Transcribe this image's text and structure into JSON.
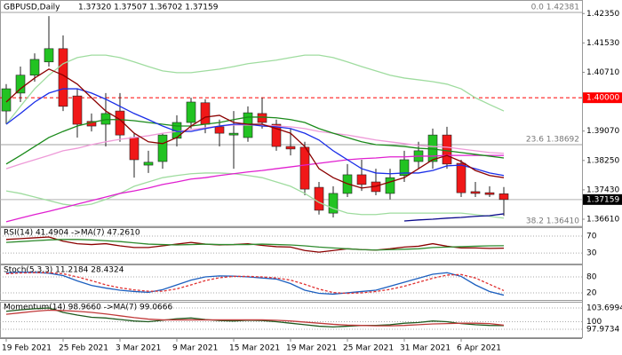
{
  "chart_data": [
    {
      "type": "candlestick",
      "title": "GBPUSD,Daily",
      "ohlc_label": "1.37320 1.37507 1.36702 1.37159",
      "categories": [
        "19 Feb 2021",
        null,
        null,
        null,
        "25 Feb 2021",
        null,
        null,
        null,
        "3 Mar 2021",
        null,
        null,
        null,
        "9 Mar 2021",
        null,
        null,
        null,
        "15 Mar 2021",
        null,
        null,
        null,
        "19 Mar 2021",
        null,
        null,
        null,
        "25 Mar 2021",
        null,
        null,
        null,
        "31 Mar 2021",
        null,
        null,
        null,
        "6 Apr 2021",
        null,
        null,
        null
      ],
      "open": [
        1.3963,
        1.4013,
        1.4063,
        1.41,
        1.4137,
        1.4005,
        1.3934,
        1.3926,
        1.3963,
        1.3889,
        1.3812,
        1.3822,
        1.3887,
        1.3931,
        1.3986,
        1.3919,
        1.3896,
        1.3889,
        1.3956,
        1.3926,
        1.3864,
        1.3862,
        1.375,
        1.3678,
        1.3733,
        1.3785,
        1.3765,
        1.3733,
        1.3783,
        1.3822,
        1.3822,
        1.3896,
        1.3817,
        1.3738,
        1.3735,
        1.3732
      ],
      "high": [
        1.4038,
        1.4087,
        1.4124,
        1.4228,
        1.4174,
        1.4025,
        1.3956,
        1.4013,
        1.4013,
        1.3901,
        1.3852,
        1.3901,
        1.3951,
        1.4,
        1.3996,
        1.3939,
        1.3963,
        1.3976,
        1.4,
        1.3939,
        1.3914,
        1.3877,
        1.3765,
        1.3753,
        1.3815,
        1.3827,
        1.3802,
        1.3802,
        1.3852,
        1.3877,
        1.3914,
        1.3919,
        1.3827,
        1.3765,
        1.3753,
        1.37507
      ],
      "low": [
        1.3926,
        1.3988,
        1.4045,
        1.4087,
        1.3963,
        1.3889,
        1.3906,
        1.3864,
        1.3877,
        1.3777,
        1.379,
        1.3802,
        1.3864,
        1.3914,
        1.3901,
        1.3864,
        1.3802,
        1.3877,
        1.3914,
        1.3852,
        1.3839,
        1.3728,
        1.3674,
        1.3666,
        1.3723,
        1.374,
        1.3728,
        1.3716,
        1.3765,
        1.3802,
        1.3802,
        1.3802,
        1.3723,
        1.3723,
        1.3723,
        1.36702
      ],
      "close": [
        1.4025,
        1.4063,
        1.4107,
        1.4137,
        1.3976,
        1.3926,
        1.3921,
        1.3956,
        1.3896,
        1.3827,
        1.382,
        1.3896,
        1.3931,
        1.3988,
        1.3926,
        1.3901,
        1.3901,
        1.3958,
        1.3931,
        1.3864,
        1.3857,
        1.3745,
        1.3686,
        1.3733,
        1.3785,
        1.3758,
        1.3738,
        1.3777,
        1.3827,
        1.3852,
        1.3896,
        1.3815,
        1.3735,
        1.3733,
        1.373,
        1.37159
      ],
      "bull_color": "#22c322",
      "bear_color": "#f01818",
      "lines": [
        {
          "color": "#9fdc9f",
          "values": [
            1.3926,
            1.3976,
            1.4025,
            1.4063,
            1.4095,
            1.4112,
            1.4119,
            1.4119,
            1.4112,
            1.41,
            1.4087,
            1.4075,
            1.407,
            1.407,
            1.4075,
            1.408,
            1.4087,
            1.4095,
            1.41,
            1.4105,
            1.4112,
            1.4119,
            1.4119,
            1.4112,
            1.41,
            1.4087,
            1.4075,
            1.4063,
            1.4055,
            1.405,
            1.4045,
            1.4038,
            1.4025,
            1.4,
            1.3981,
            1.3963
          ]
        },
        {
          "color": "#9fdc9f",
          "values": [
            1.374,
            1.3733,
            1.3723,
            1.3713,
            1.3703,
            1.3698,
            1.3703,
            1.3716,
            1.3733,
            1.3753,
            1.3765,
            1.3777,
            1.3783,
            1.3788,
            1.379,
            1.379,
            1.3788,
            1.3783,
            1.3777,
            1.3765,
            1.3753,
            1.3733,
            1.3708,
            1.3691,
            1.3678,
            1.3674,
            1.3674,
            1.3678,
            1.3678,
            1.3678,
            1.3678,
            1.3678,
            1.3678,
            1.3674,
            1.3669,
            1.3664
          ]
        },
        {
          "color": "#ee9ad8",
          "values": [
            1.3802,
            1.3815,
            1.3827,
            1.3839,
            1.3852,
            1.3859,
            1.3869,
            1.3877,
            1.3884,
            1.3889,
            1.3894,
            1.3901,
            1.3906,
            1.3911,
            1.3916,
            1.3921,
            1.3924,
            1.3924,
            1.3924,
            1.3921,
            1.3919,
            1.3914,
            1.3906,
            1.3901,
            1.3896,
            1.3889,
            1.3882,
            1.3877,
            1.3872,
            1.3867,
            1.3864,
            1.3862,
            1.3857,
            1.3852,
            1.3847,
            1.3845
          ]
        },
        {
          "color": "#e020d0",
          "values": [
            1.3654,
            1.3664,
            1.3674,
            1.3683,
            1.3693,
            1.3703,
            1.3713,
            1.3723,
            1.3733,
            1.374,
            1.3748,
            1.3758,
            1.3765,
            1.3773,
            1.3777,
            1.3783,
            1.3788,
            1.3793,
            1.3797,
            1.3802,
            1.3807,
            1.3812,
            1.3817,
            1.3822,
            1.3827,
            1.383,
            1.3832,
            1.3835,
            1.3835,
            1.3837,
            1.3837,
            1.3839,
            1.3839,
            1.3839,
            1.3839,
            1.3839
          ]
        },
        {
          "color": "#1a8a1a",
          "values": [
            1.3815,
            1.3839,
            1.3864,
            1.3889,
            1.3906,
            1.3921,
            1.3931,
            1.3939,
            1.3939,
            1.3936,
            1.3931,
            1.3926,
            1.3921,
            1.3921,
            1.3926,
            1.3931,
            1.3939,
            1.3946,
            1.3946,
            1.3944,
            1.3939,
            1.3931,
            1.3914,
            1.3901,
            1.3889,
            1.3877,
            1.3869,
            1.3867,
            1.3864,
            1.3859,
            1.3857,
            1.3852,
            1.3847,
            1.3842,
            1.3837,
            1.3832
          ]
        },
        {
          "color": "#1a2ee8",
          "values": [
            1.3926,
            1.3956,
            1.3988,
            1.4013,
            1.4025,
            1.4025,
            1.4013,
            1.3996,
            1.3976,
            1.3956,
            1.3939,
            1.3921,
            1.3906,
            1.3906,
            1.3914,
            1.3921,
            1.3926,
            1.3926,
            1.3921,
            1.3919,
            1.3914,
            1.3901,
            1.3882,
            1.3852,
            1.3827,
            1.3802,
            1.379,
            1.3788,
            1.379,
            1.379,
            1.3797,
            1.381,
            1.3812,
            1.3802,
            1.379,
            1.3783
          ]
        },
        {
          "color": "#8b0000",
          "values": [
            1.3988,
            1.4025,
            1.4055,
            1.408,
            1.4063,
            1.4038,
            1.4,
            1.3963,
            1.3939,
            1.3901,
            1.3877,
            1.3872,
            1.3889,
            1.3921,
            1.3946,
            1.3951,
            1.3931,
            1.3926,
            1.3926,
            1.3914,
            1.3901,
            1.3864,
            1.3802,
            1.3777,
            1.376,
            1.3748,
            1.3753,
            1.3765,
            1.3777,
            1.3802,
            1.3827,
            1.3839,
            1.3822,
            1.3797,
            1.3783,
            1.3777
          ]
        },
        {
          "color": "#0a0a8c",
          "values": [
            null,
            null,
            null,
            null,
            null,
            null,
            null,
            null,
            null,
            null,
            null,
            null,
            null,
            null,
            null,
            null,
            null,
            null,
            null,
            null,
            null,
            null,
            null,
            null,
            null,
            null,
            null,
            null,
            1.3656,
            1.3659,
            1.3661,
            1.3664,
            1.3666,
            1.3669,
            1.3671,
            1.3676
          ]
        }
      ],
      "ylim": [
        1.36412,
        1.42728
      ],
      "yticks": [
        {
          "value": 1.4235,
          "label": "1.42350"
        },
        {
          "value": 1.4153,
          "label": "1.41530"
        },
        {
          "value": 1.4071,
          "label": "1.40710"
        },
        {
          "value": 1.3907,
          "label": "1.39070"
        },
        {
          "value": 1.3825,
          "label": "1.38250"
        },
        {
          "value": 1.3743,
          "label": "1.37430"
        },
        {
          "value": 1.3661,
          "label": "1.36610"
        }
      ],
      "levels": [
        {
          "label": "0.0 1.42381",
          "value": 1.42381,
          "color": "#a0a0a0"
        },
        {
          "label": "23.6 1.38692",
          "value": 1.38692,
          "color": "#a0a0a0"
        },
        {
          "label": "38.2 1.36410",
          "value": 1.3641,
          "color": "#a0a0a0"
        }
      ],
      "resistance": {
        "value": 1.4,
        "label": "1.40000",
        "color": "#ff0000"
      },
      "last_price": {
        "value": 1.37159,
        "color": "#000000"
      }
    },
    {
      "type": "line",
      "title": "RSI(14) 41.4904 ->MA(7) 47.2610",
      "series": [
        {
          "color": "#8b0000",
          "values": [
            62,
            64,
            66,
            68,
            58,
            52,
            50,
            52,
            47,
            43,
            43,
            47,
            51,
            55,
            51,
            49,
            50,
            52,
            48,
            45,
            44,
            36,
            32,
            36,
            40,
            38,
            37,
            40,
            44,
            46,
            52,
            46,
            42,
            42,
            41,
            41.4904
          ]
        },
        {
          "color": "#2e8b2e",
          "values": [
            55,
            57,
            59,
            61,
            62,
            62,
            61,
            59,
            57,
            54,
            51,
            50,
            49,
            50,
            51,
            50,
            50,
            50,
            51,
            50,
            49,
            47,
            44,
            42,
            40,
            38,
            37,
            38,
            39,
            40,
            43,
            44,
            45,
            46,
            47,
            47.261
          ]
        }
      ],
      "ylim": [
        5,
        91
      ],
      "yticks": [
        70,
        30
      ]
    },
    {
      "type": "line",
      "title": "Stoch(5,3,3) 11.2184 28.4324",
      "series": [
        {
          "color": "#1c5fbf",
          "values": [
            95,
            98,
            97,
            94,
            85,
            65,
            48,
            38,
            30,
            25,
            22,
            32,
            50,
            68,
            80,
            84,
            83,
            80,
            76,
            72,
            55,
            30,
            18,
            15,
            20,
            25,
            30,
            45,
            60,
            75,
            90,
            96,
            82,
            50,
            25,
            11.2184
          ]
        },
        {
          "color": "#e03030",
          "dash": true,
          "values": [
            92,
            95,
            96,
            96,
            92,
            80,
            66,
            50,
            39,
            31,
            26,
            26,
            35,
            50,
            66,
            77,
            82,
            82,
            80,
            76,
            68,
            52,
            34,
            21,
            18,
            20,
            25,
            33,
            45,
            60,
            75,
            87,
            89,
            76,
            52,
            28.4324
          ]
        }
      ],
      "ylim": [
        -7,
        127
      ],
      "yticks": [
        80,
        20
      ]
    },
    {
      "type": "line",
      "title": "Momentum(14) 98.9660 ->MA(7) 99.0666",
      "series": [
        {
          "color": "#1e5a1e",
          "values": [
            102.8,
            103.2,
            103.5,
            103.7,
            102.5,
            101.8,
            101.2,
            101.0,
            100.6,
            100.2,
            100.0,
            100.4,
            100.8,
            101.0,
            100.6,
            100.3,
            100.2,
            100.4,
            100.3,
            100.0,
            99.6,
            99.2,
            98.8,
            98.6,
            98.8,
            99.0,
            99.0,
            99.2,
            99.6,
            99.8,
            100.2,
            100.0,
            99.5,
            99.2,
            99.0,
            98.966
          ]
        },
        {
          "color": "#c03a3a",
          "values": [
            102.0,
            102.4,
            102.8,
            103.1,
            103.0,
            102.8,
            102.5,
            102.1,
            101.6,
            101.1,
            100.7,
            100.5,
            100.5,
            100.5,
            100.5,
            100.5,
            100.5,
            100.5,
            100.5,
            100.4,
            100.2,
            99.9,
            99.6,
            99.3,
            99.1,
            99.0,
            98.9,
            98.9,
            99.0,
            99.2,
            99.4,
            99.5,
            99.6,
            99.6,
            99.5,
            99.0666
          ]
        }
      ],
      "ylim": [
        95.83,
        105.37
      ],
      "yticks": [
        103.6994,
        100,
        97.9734
      ]
    }
  ]
}
